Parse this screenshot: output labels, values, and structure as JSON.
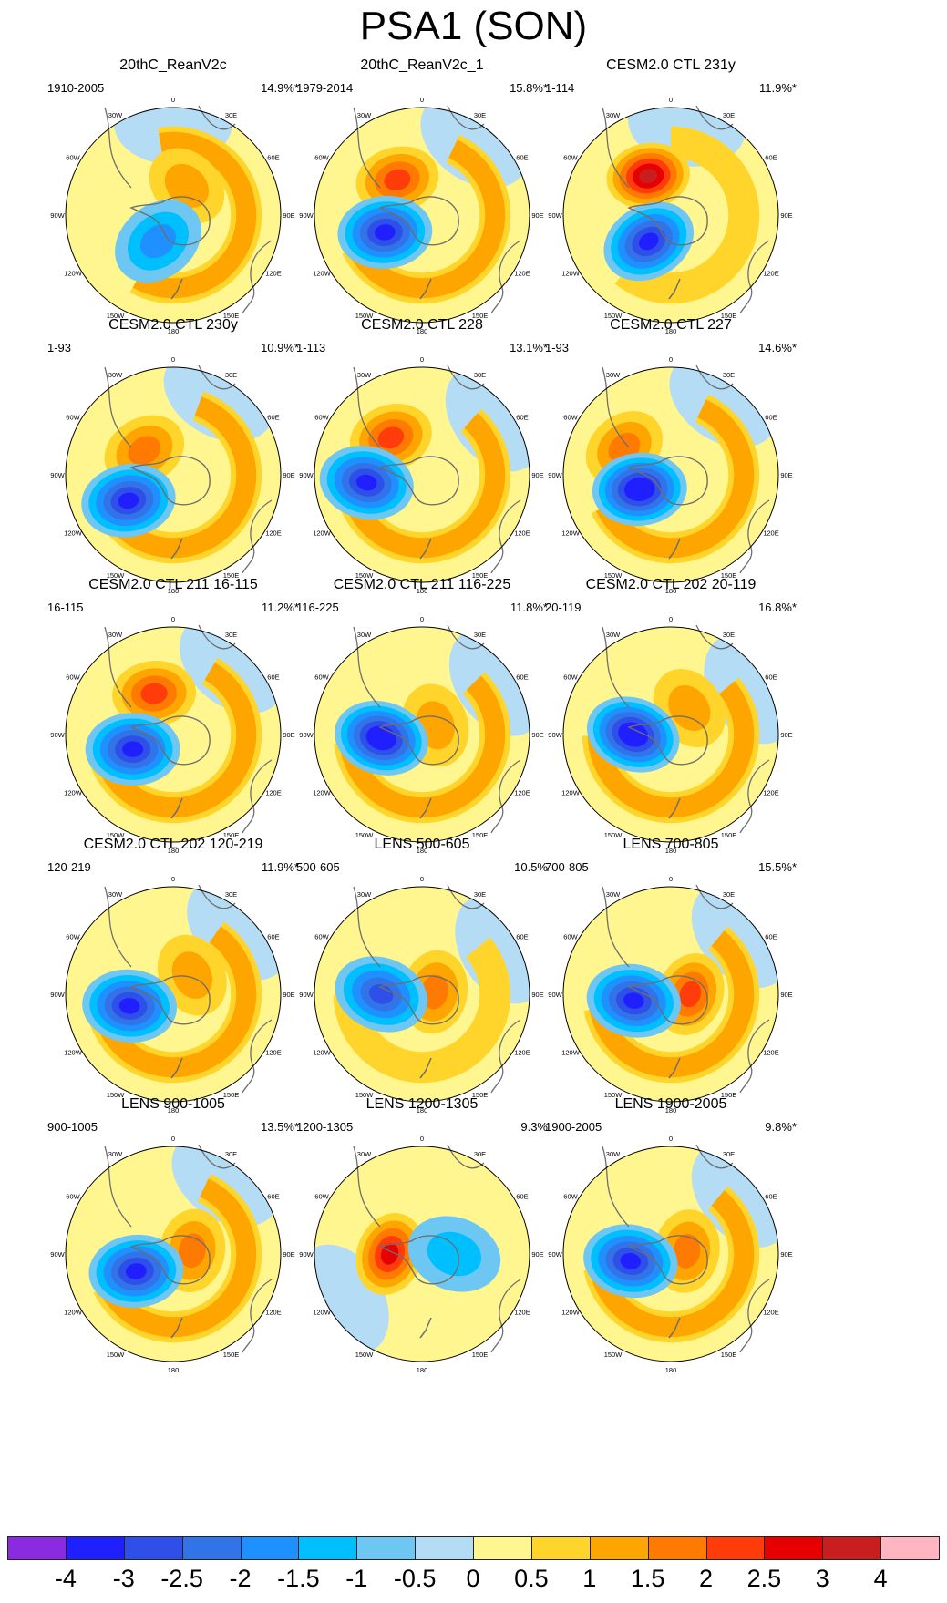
{
  "figure": {
    "title": "PSA1 (SON)"
  },
  "chart_data": {
    "type": "polar-contour-map",
    "title": "PSA1 (SON)",
    "projection": "south-polar stereographic",
    "grid_columns": 3,
    "grid_rows": 5,
    "longitude_labels": [
      "0",
      "30E",
      "60E",
      "90E",
      "120E",
      "150E",
      "180",
      "150W",
      "120W",
      "90W",
      "60W",
      "30W"
    ],
    "colorbar": {
      "levels": [
        "-4",
        "-3",
        "-2.5",
        "-2",
        "-1.5",
        "-1",
        "-0.5",
        "0",
        "0.5",
        "1",
        "1.5",
        "2",
        "2.5",
        "3",
        "4"
      ],
      "colors": [
        "#8a2be2",
        "#1f1fff",
        "#2e4fe8",
        "#3273e8",
        "#1e90ff",
        "#00bfff",
        "#6ec7f2",
        "#b4dcf5",
        "#fff68f",
        "#ffd52b",
        "#ffa500",
        "#ff7a00",
        "#ff3c0a",
        "#e60000",
        "#c81e1e",
        "#ffb6c1"
      ]
    },
    "panels": [
      {
        "title": "20thC_ReanV2c",
        "range": "1910-2005",
        "variance": "14.9%*",
        "pos": {
          "a": 25,
          "r": 0.3,
          "v": 1.2
        },
        "neg": {
          "a": 210,
          "r": 0.28,
          "v": -1.9
        },
        "ring": 0.9
      },
      {
        "title": "20thC_ReanV2c_1",
        "range": "1979-2014",
        "variance": "15.8%*",
        "pos": {
          "a": 325,
          "r": 0.4,
          "v": 2.4
        },
        "neg": {
          "a": 245,
          "r": 0.38,
          "v": -3.3
        },
        "ring": 0.8
      },
      {
        "title": "CESM2.0 CTL 231y",
        "range": "1-114",
        "variance": "11.9%*",
        "pos": {
          "a": 330,
          "r": 0.42,
          "v": 3.0
        },
        "neg": {
          "a": 220,
          "r": 0.32,
          "v": -3.2
        },
        "ring": 0.7
      },
      {
        "title": "CESM2.0 CTL 230y",
        "range": "1-93",
        "variance": "10.9%*",
        "pos": {
          "a": 310,
          "r": 0.35,
          "v": 1.8
        },
        "neg": {
          "a": 240,
          "r": 0.48,
          "v": -3.4
        },
        "ring": 1.0
      },
      {
        "title": "CESM2.0 CTL 228",
        "range": "1-113",
        "variance": "13.1%*",
        "pos": {
          "a": 320,
          "r": 0.45,
          "v": 2.3
        },
        "neg": {
          "a": 262,
          "r": 0.52,
          "v": -3.3
        },
        "ring": 1.0
      },
      {
        "title": "CESM2.0 CTL 227",
        "range": "1-93",
        "variance": "14.6%*",
        "pos": {
          "a": 300,
          "r": 0.5,
          "v": 1.6
        },
        "neg": {
          "a": 245,
          "r": 0.32,
          "v": -3.7
        },
        "ring": 1.0
      },
      {
        "title": "CESM2.0 CTL 211 16-115",
        "range": "16-115",
        "variance": "11.2%*",
        "pos": {
          "a": 335,
          "r": 0.42,
          "v": 2.2
        },
        "neg": {
          "a": 250,
          "r": 0.4,
          "v": -3.3
        },
        "ring": 1.0
      },
      {
        "title": "CESM2.0 CTL 211 116-225",
        "range": "116-225",
        "variance": "11.8%*",
        "pos": {
          "a": 55,
          "r": 0.15,
          "v": 1.4
        },
        "neg": {
          "a": 265,
          "r": 0.38,
          "v": -3.5
        },
        "ring": 1.0
      },
      {
        "title": "CESM2.0 CTL 202 20-119",
        "range": "20-119",
        "variance": "16.8%*",
        "pos": {
          "a": 35,
          "r": 0.3,
          "v": 1.3
        },
        "neg": {
          "a": 270,
          "r": 0.35,
          "v": -3.7
        },
        "ring": 1.2
      },
      {
        "title": "CESM2.0 CTL 202 120-219",
        "range": "120-219",
        "variance": "11.9%*",
        "pos": {
          "a": 45,
          "r": 0.25,
          "v": 1.4
        },
        "neg": {
          "a": 255,
          "r": 0.42,
          "v": -3.3
        },
        "ring": 1.2
      },
      {
        "title": "LENS 500-605",
        "range": "500-605",
        "variance": "10.5%",
        "pos": {
          "a": 80,
          "r": 0.12,
          "v": 1.5
        },
        "neg": {
          "a": 270,
          "r": 0.38,
          "v": -2.9
        },
        "ring": 0.5
      },
      {
        "title": "LENS 700-805",
        "range": "700-805",
        "variance": "15.5%*",
        "pos": {
          "a": 90,
          "r": 0.18,
          "v": 2.0
        },
        "neg": {
          "a": 260,
          "r": 0.35,
          "v": -3.4
        },
        "ring": 1.1
      },
      {
        "title": "LENS 900-1005",
        "range": "900-1005",
        "variance": "13.5%*",
        "pos": {
          "a": 80,
          "r": 0.18,
          "v": 1.9
        },
        "neg": {
          "a": 245,
          "r": 0.38,
          "v": -3.1
        },
        "ring": 0.9
      },
      {
        "title": "LENS 1200-1305",
        "range": "1200-1305",
        "variance": "9.3%",
        "pos": {
          "a": 270,
          "r": 0.3,
          "v": 2.7
        },
        "neg": {
          "a": 90,
          "r": 0.3,
          "v": -1.3
        },
        "ring": 0.0
      },
      {
        "title": "LENS 1900-2005",
        "range": "1900-2005",
        "variance": "9.8%*",
        "pos": {
          "a": 80,
          "r": 0.15,
          "v": 1.7
        },
        "neg": {
          "a": 260,
          "r": 0.38,
          "v": -3.2
        },
        "ring": 0.8
      }
    ]
  }
}
